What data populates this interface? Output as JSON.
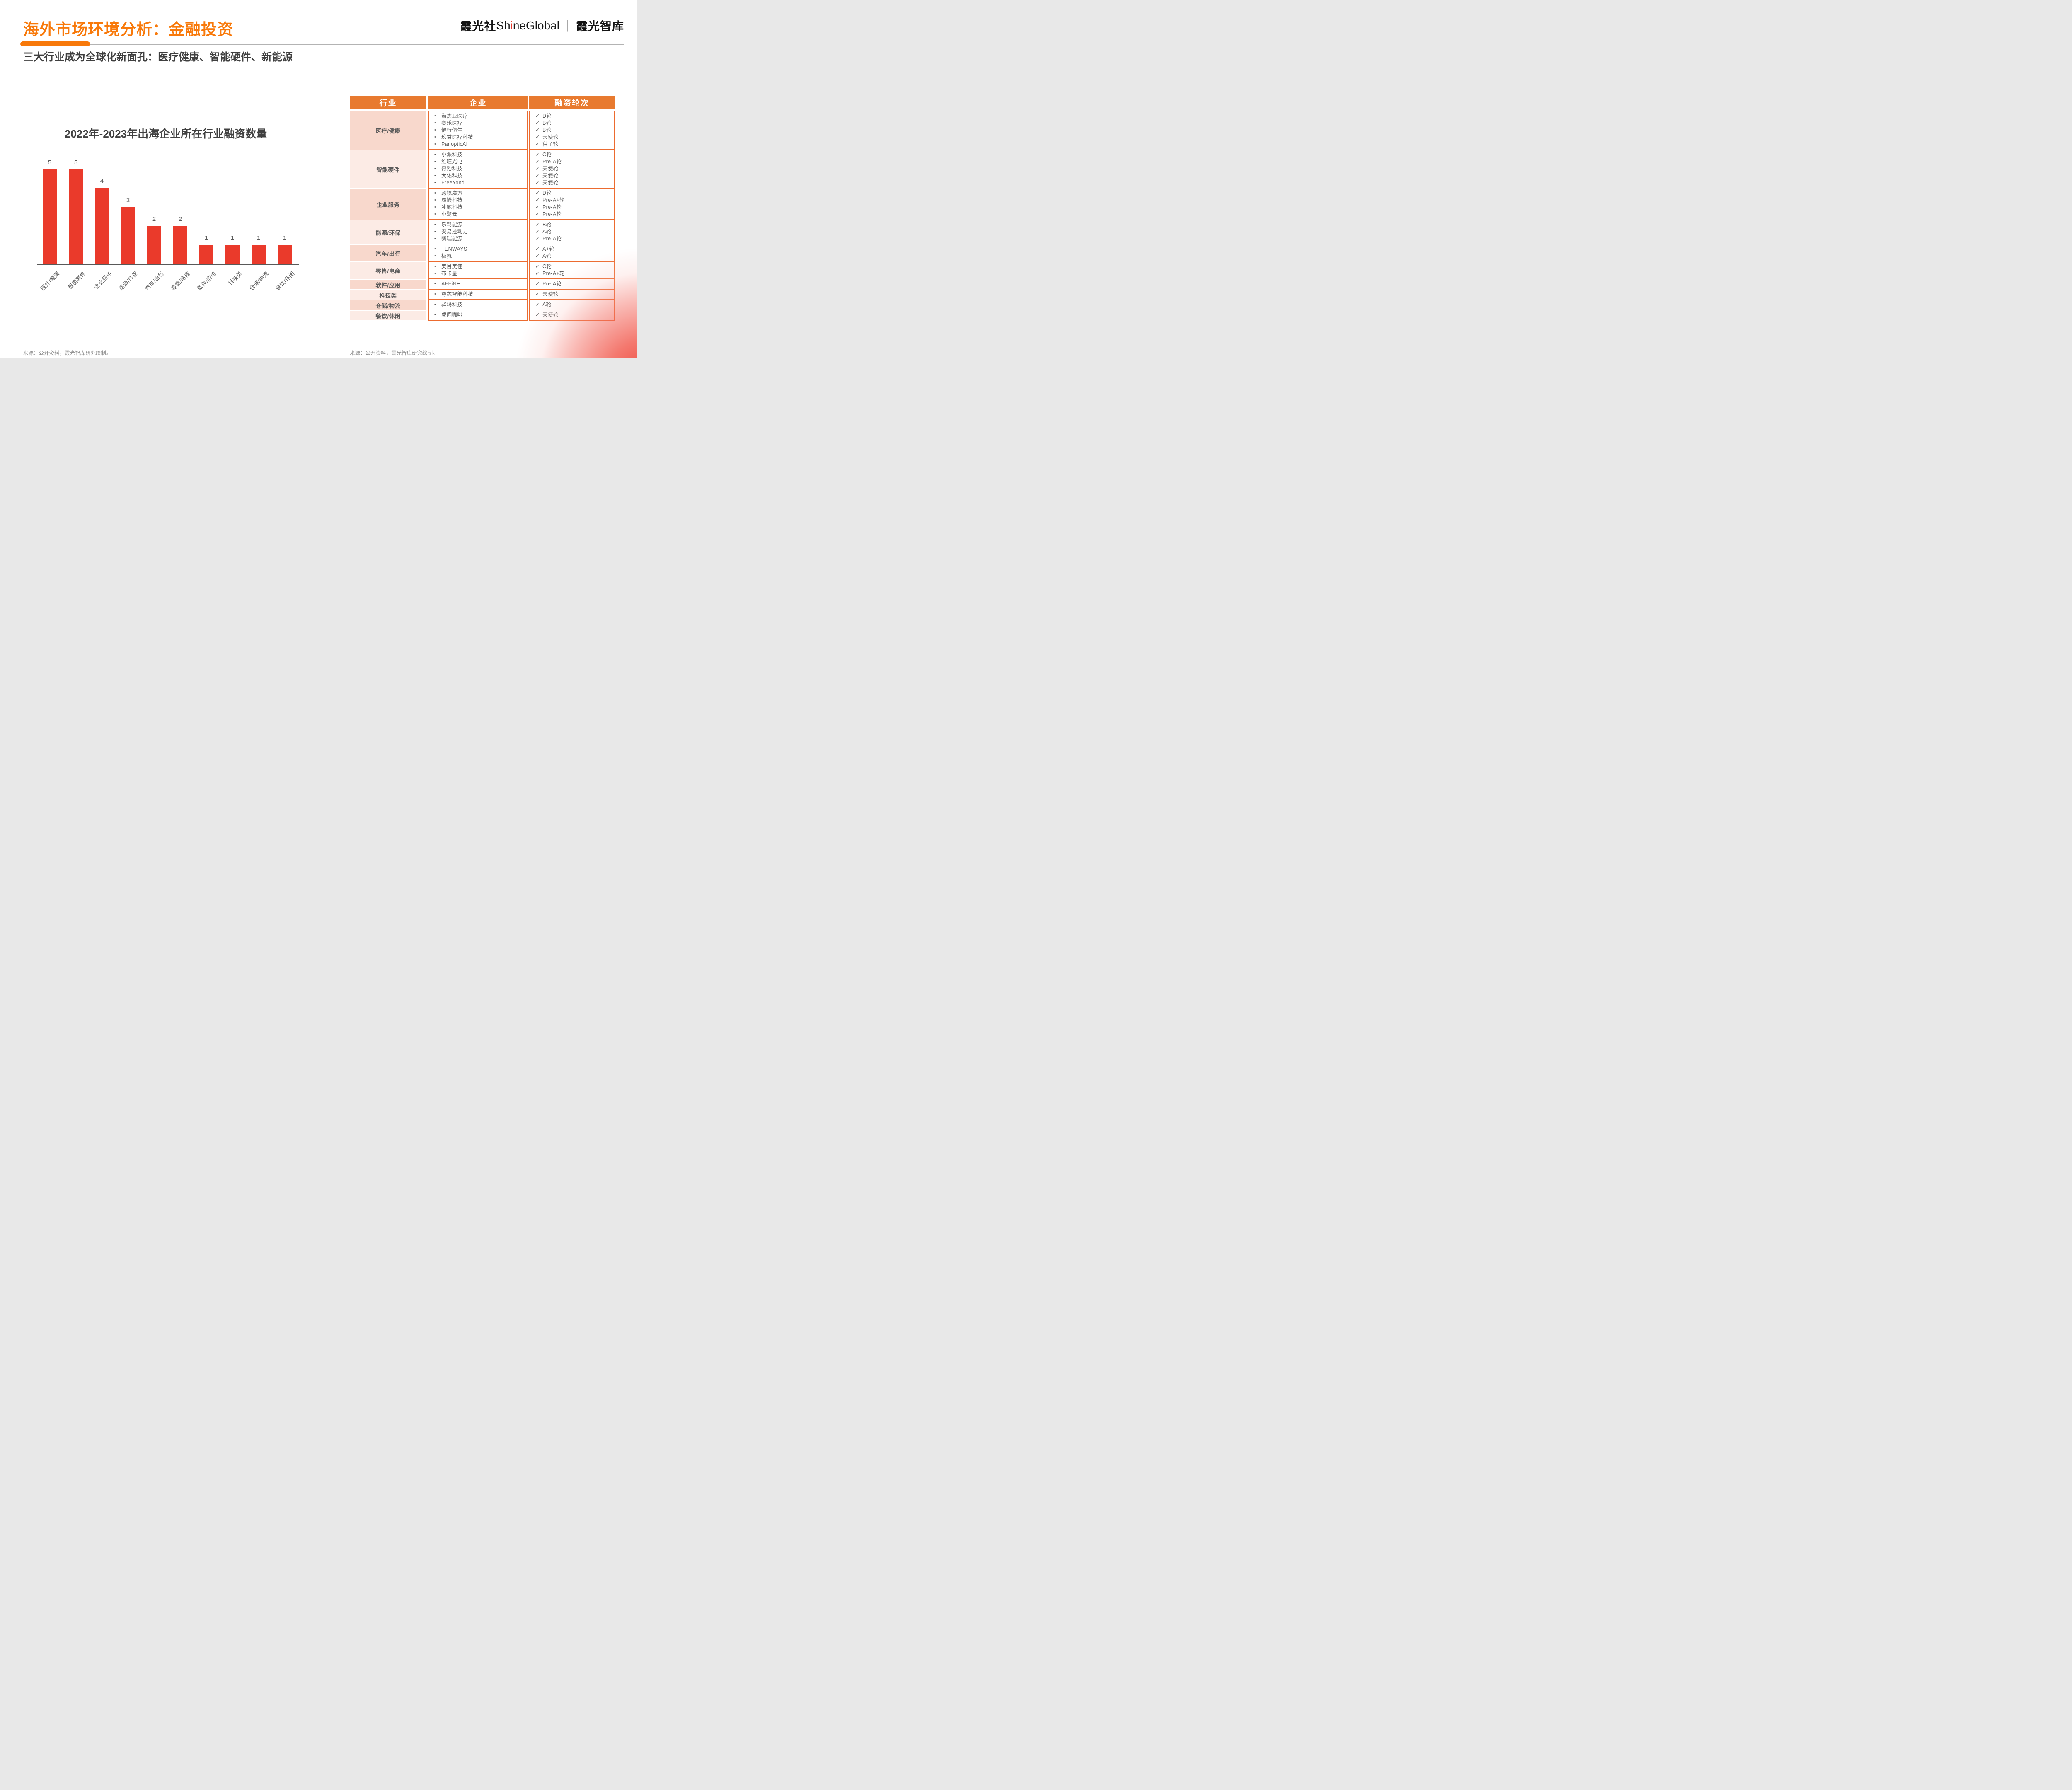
{
  "page": {
    "title": "海外市场环境分析：金融投资",
    "subtitle": "三大行业成为全球化新面孔：医疗健康、智能硬件、新能源"
  },
  "logo": {
    "brand_cjk": "霞光社",
    "latin_pre": "Sh",
    "accent_letter": "i",
    "latin_post": "neGlobal",
    "separator": "｜",
    "suffix": "霞光智库"
  },
  "chart_data": {
    "type": "bar",
    "title": "2022年-2023年出海企业所在行业融资数量",
    "categories": [
      "医疗/健康",
      "智能硬件",
      "企业服务",
      "能源/环保",
      "汽车/出行",
      "零售/电商",
      "软件/应用",
      "科技类",
      "仓储/物流",
      "餐饮/休闲"
    ],
    "values": [
      5,
      5,
      4,
      3,
      2,
      2,
      1,
      1,
      1,
      1
    ],
    "xlabel": "",
    "ylabel": "",
    "ylim": [
      0,
      5
    ],
    "grid": "off",
    "legend": "none",
    "value_labels": "above bars",
    "bar_color": "#EA3A2B"
  },
  "table": {
    "headers": [
      "行业",
      "企业",
      "融资轮次"
    ],
    "bullet": "•",
    "check": "✓",
    "rows": [
      {
        "industry": "医疗/健康",
        "companies": [
          "海杰亚医疗",
          "赛乐医疗",
          "健行仿生",
          "玖益医疗科技",
          "PanopticAI"
        ],
        "rounds": [
          "D轮",
          "B轮",
          "B轮",
          "天使轮",
          "种子轮"
        ]
      },
      {
        "industry": "智能硬件",
        "companies": [
          "小派科技",
          "维旺光电",
          "奇勃科技",
          "大佑科技",
          "FreeYond"
        ],
        "rounds": [
          "C轮",
          "Pre-A轮",
          "天使轮",
          "天使轮",
          "天使轮"
        ]
      },
      {
        "industry": "企业服务",
        "companies": [
          "跨境魔方",
          "辰鳗科技",
          "冰鲸科技",
          "小鹭云"
        ],
        "rounds": [
          "D轮",
          "Pre-A+轮",
          "Pre-A轮",
          "Pre-A轮"
        ]
      },
      {
        "industry": "能源/环保",
        "companies": [
          "乐驾能源",
          "安易控动力",
          "新瑞能源"
        ],
        "rounds": [
          "B轮",
          "A轮",
          "Pre-A轮"
        ]
      },
      {
        "industry": "汽车/出行",
        "companies": [
          "TENWAYS",
          "极氪"
        ],
        "rounds": [
          "A+轮",
          "A轮"
        ]
      },
      {
        "industry": "零售/电商",
        "companies": [
          "美目美佳",
          "布卡星"
        ],
        "rounds": [
          "C轮",
          "Pre-A+轮"
        ]
      },
      {
        "industry": "软件/应用",
        "companies": [
          "AFFiNE"
        ],
        "rounds": [
          "Pre-A轮"
        ]
      },
      {
        "industry": "科技类",
        "companies": [
          "尊芯智能科技"
        ],
        "rounds": [
          "天使轮"
        ]
      },
      {
        "industry": "仓储/物流",
        "companies": [
          "驿玛科技"
        ],
        "rounds": [
          "A轮"
        ]
      },
      {
        "industry": "餐饮/休闲",
        "companies": [
          "虎闻咖啡"
        ],
        "rounds": [
          "天使轮"
        ]
      }
    ]
  },
  "sources": {
    "left": "来源：公开资料，霞光智库研究绘制。",
    "right": "来源：公开资料，霞光智库研究绘制。"
  },
  "colors": {
    "accent_orange": "#F8790A",
    "header_orange": "#E87A2F",
    "border_orange": "#EC6B2F",
    "bar_red": "#EA3A2B",
    "row_pink_dark": "#F8D8CC",
    "row_pink_light": "#FCEBE5",
    "logo_accent_red": "#E8382D",
    "axis_gray": "#595959",
    "heading_gray": "#3F3F3F",
    "body_gray": "#595959",
    "source_gray": "#8C8C8C",
    "rule_gray": "#B3B3B3"
  }
}
